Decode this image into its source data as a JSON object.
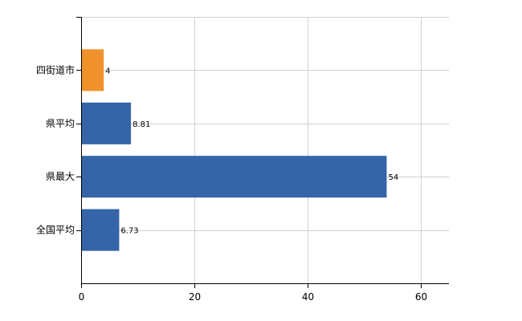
{
  "chart_data": {
    "type": "bar",
    "orientation": "horizontal",
    "categories": [
      "四街道市",
      "県平均",
      "県最大",
      "全国平均"
    ],
    "values": [
      4,
      8.81,
      54,
      6.73
    ],
    "value_labels": [
      "4",
      "8.81",
      "54",
      "6.73"
    ],
    "bar_colors": [
      "#f0922b",
      "#3565a8",
      "#3565a8",
      "#3565a8"
    ],
    "highlight_color": "#f0922b",
    "base_color": "#3565a8",
    "xlim": [
      0,
      65
    ],
    "xticks": [
      0,
      20,
      40,
      60
    ],
    "xtick_labels": [
      "0",
      "20",
      "40",
      "60"
    ],
    "grid": true
  }
}
